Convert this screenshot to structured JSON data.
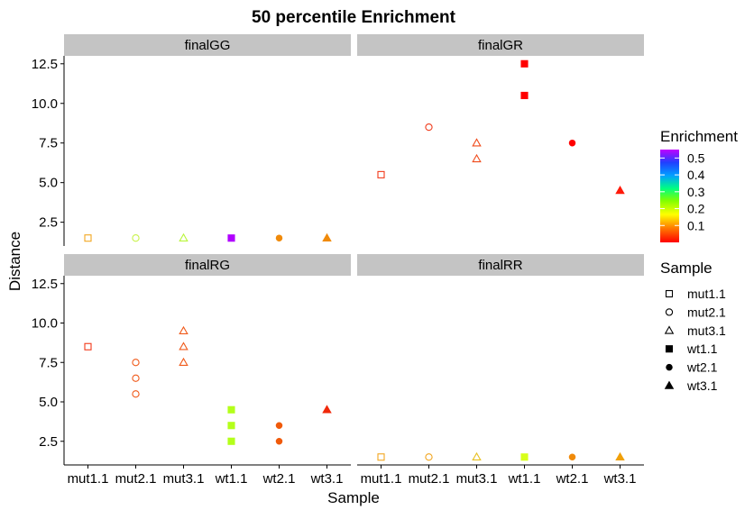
{
  "chart_data": {
    "type": "scatter",
    "title": "50 percentile Enrichment",
    "xlabel": "Sample",
    "ylabel": "Distance",
    "categories": [
      "mut1.1",
      "mut2.1",
      "mut3.1",
      "wt1.1",
      "wt2.1",
      "wt3.1"
    ],
    "yticks": [
      2.5,
      5.0,
      7.5,
      10.0,
      12.5
    ],
    "ytick_labels": [
      "2.5",
      "5.0",
      "7.5",
      "10.0",
      "12.5"
    ],
    "ylim": [
      1.0,
      13.0
    ],
    "legend_placement": "right",
    "colour_legend": {
      "title": "Enrichment",
      "labels": [
        "0.5",
        "0.4",
        "0.3",
        "0.2",
        "0.1"
      ],
      "values": [
        0.5,
        0.4,
        0.3,
        0.2,
        0.1
      ],
      "range": [
        0.0,
        0.55
      ]
    },
    "shape_legend": {
      "title": "Sample",
      "items": [
        {
          "label": "mut1.1",
          "shape": "square-open"
        },
        {
          "label": "mut2.1",
          "shape": "circle-open"
        },
        {
          "label": "mut3.1",
          "shape": "triangle-open"
        },
        {
          "label": "wt1.1",
          "shape": "square-filled"
        },
        {
          "label": "wt2.1",
          "shape": "circle-filled"
        },
        {
          "label": "wt3.1",
          "shape": "triangle-filled"
        }
      ]
    },
    "panels": [
      {
        "name": "finalGG",
        "points": [
          {
            "x": "mut1.1",
            "y": 1.5,
            "color": "#F2A620"
          },
          {
            "x": "mut2.1",
            "y": 1.5,
            "color": "#C8F24A"
          },
          {
            "x": "mut3.1",
            "y": 1.5,
            "color": "#B9F53A"
          },
          {
            "x": "wt1.1",
            "y": 1.5,
            "color": "#B100FF"
          },
          {
            "x": "wt2.1",
            "y": 1.5,
            "color": "#F08A0A"
          },
          {
            "x": "wt3.1",
            "y": 1.5,
            "color": "#F08A0A"
          }
        ]
      },
      {
        "name": "finalGR",
        "points": [
          {
            "x": "mut1.1",
            "y": 5.5,
            "color": "#F23A1A"
          },
          {
            "x": "mut2.1",
            "y": 8.5,
            "color": "#F03A1A"
          },
          {
            "x": "mut3.1",
            "y": 7.5,
            "color": "#F04A1A"
          },
          {
            "x": "mut3.1",
            "y": 6.5,
            "color": "#F04A1A"
          },
          {
            "x": "wt1.1",
            "y": 12.5,
            "color": "#FF0000"
          },
          {
            "x": "wt1.1",
            "y": 10.5,
            "color": "#FF0000"
          },
          {
            "x": "wt2.1",
            "y": 7.5,
            "color": "#FF0000"
          },
          {
            "x": "wt3.1",
            "y": 4.5,
            "color": "#FF1A0A"
          }
        ]
      },
      {
        "name": "finalRG",
        "points": [
          {
            "x": "mut1.1",
            "y": 8.5,
            "color": "#F23A1A"
          },
          {
            "x": "mut2.1",
            "y": 7.5,
            "color": "#F05A1A"
          },
          {
            "x": "mut2.1",
            "y": 6.5,
            "color": "#F05A1A"
          },
          {
            "x": "mut2.1",
            "y": 5.5,
            "color": "#F05A1A"
          },
          {
            "x": "mut3.1",
            "y": 9.5,
            "color": "#F05A1A"
          },
          {
            "x": "mut3.1",
            "y": 8.5,
            "color": "#F05A1A"
          },
          {
            "x": "mut3.1",
            "y": 7.5,
            "color": "#F05A1A"
          },
          {
            "x": "wt1.1",
            "y": 4.5,
            "color": "#B4FF1A"
          },
          {
            "x": "wt1.1",
            "y": 3.5,
            "color": "#B4FF1A"
          },
          {
            "x": "wt1.1",
            "y": 2.5,
            "color": "#B4FF1A"
          },
          {
            "x": "wt2.1",
            "y": 3.5,
            "color": "#F05A0A"
          },
          {
            "x": "wt2.1",
            "y": 2.5,
            "color": "#F05A0A"
          },
          {
            "x": "wt3.1",
            "y": 4.5,
            "color": "#F0280A"
          }
        ]
      },
      {
        "name": "finalRR",
        "points": [
          {
            "x": "mut1.1",
            "y": 1.5,
            "color": "#F2A620"
          },
          {
            "x": "mut2.1",
            "y": 1.5,
            "color": "#F2A620"
          },
          {
            "x": "mut3.1",
            "y": 1.5,
            "color": "#E8C020"
          },
          {
            "x": "wt1.1",
            "y": 1.5,
            "color": "#D8FF1A"
          },
          {
            "x": "wt2.1",
            "y": 1.5,
            "color": "#F08A0A"
          },
          {
            "x": "wt3.1",
            "y": 1.5,
            "color": "#F0A00A"
          }
        ]
      }
    ]
  }
}
